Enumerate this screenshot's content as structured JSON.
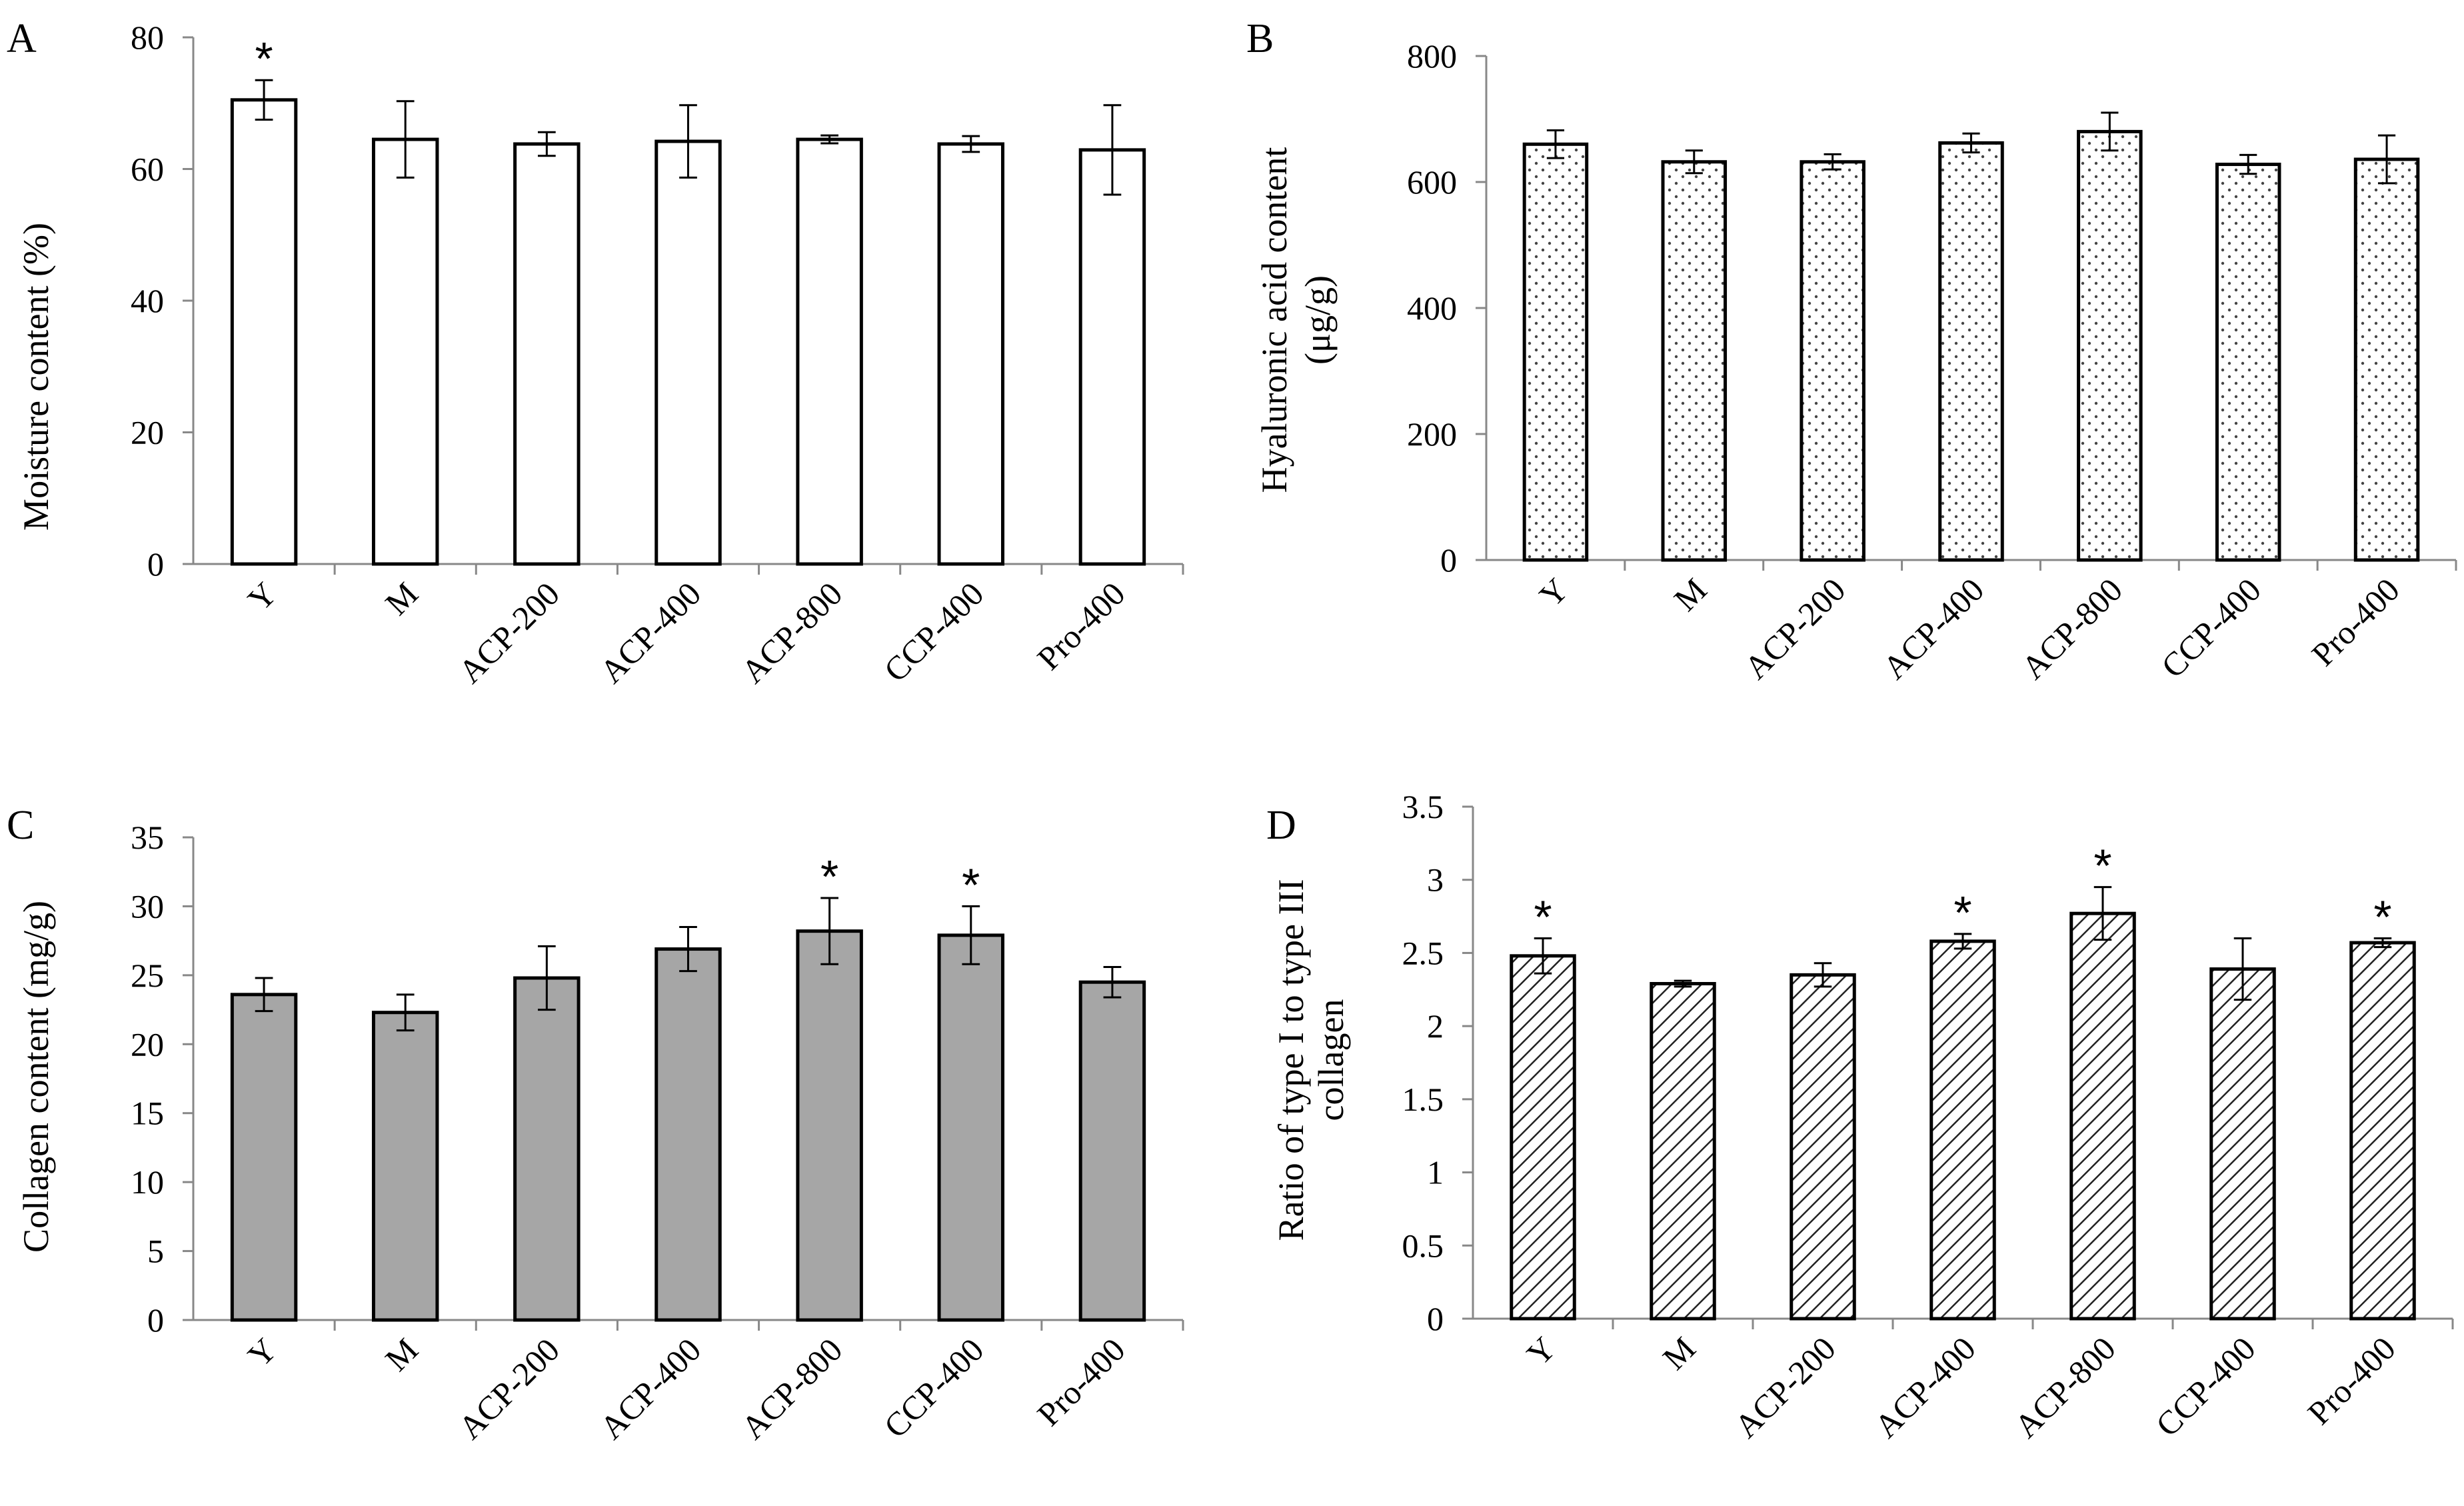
{
  "chart_data": [
    {
      "panel": "A",
      "type": "bar",
      "ylabel": [
        "Moisture content (%)"
      ],
      "categories": [
        "Y",
        "M",
        "ACP-200",
        "ACP-400",
        "ACP-800",
        "CCP-400",
        "Pro-400"
      ],
      "values": [
        70.5,
        64.5,
        63.8,
        64.2,
        64.5,
        63.8,
        62.9
      ],
      "errors": [
        3.0,
        5.8,
        1.8,
        5.5,
        0.6,
        1.2,
        6.8
      ],
      "significant": [
        true,
        false,
        false,
        false,
        false,
        false,
        false
      ],
      "marker": "*",
      "ylim": [
        0,
        80
      ],
      "yticks": [
        0,
        20,
        40,
        60,
        80
      ],
      "tick_labels": [
        "0",
        "20",
        "40",
        "60",
        "80"
      ],
      "fill": "#ffffff",
      "pattern": "none",
      "grid": false
    },
    {
      "panel": "B",
      "type": "bar",
      "ylabel": [
        "Hyaluronic acid content",
        "(μg/g)"
      ],
      "categories": [
        "Y",
        "M",
        "ACP-200",
        "ACP-400",
        "ACP-800",
        "CCP-400",
        "Pro-400"
      ],
      "values": [
        660,
        632,
        632,
        662,
        680,
        628,
        636
      ],
      "errors": [
        22,
        18,
        12,
        15,
        30,
        15,
        38
      ],
      "significant": [
        false,
        false,
        false,
        false,
        false,
        false,
        false
      ],
      "marker": "*",
      "ylim": [
        0,
        800
      ],
      "yticks": [
        0,
        200,
        400,
        600,
        800
      ],
      "tick_labels": [
        "0",
        "200",
        "400",
        "600",
        "800"
      ],
      "fill": "#ffffff",
      "pattern": "dots",
      "grid": false
    },
    {
      "panel": "C",
      "type": "bar",
      "ylabel": [
        "Collagen content (mg/g)"
      ],
      "categories": [
        "Y",
        "M",
        "ACP-200",
        "ACP-400",
        "ACP-800",
        "CCP-400",
        "Pro-400"
      ],
      "values": [
        23.6,
        22.3,
        24.8,
        26.9,
        28.2,
        27.9,
        24.5
      ],
      "errors": [
        1.2,
        1.3,
        2.3,
        1.6,
        2.4,
        2.1,
        1.1
      ],
      "significant": [
        false,
        false,
        false,
        false,
        true,
        true,
        false
      ],
      "marker": "*",
      "ylim": [
        0,
        35
      ],
      "yticks": [
        0,
        5,
        10,
        15,
        20,
        25,
        30,
        35
      ],
      "tick_labels": [
        "0",
        "5",
        "10",
        "15",
        "20",
        "25",
        "30",
        "35"
      ],
      "fill": "#a6a6a6",
      "pattern": "none",
      "grid": false
    },
    {
      "panel": "D",
      "type": "bar",
      "ylabel": [
        "Ratio of type I to type III",
        "collagen"
      ],
      "categories": [
        "Y",
        "M",
        "ACP-200",
        "ACP-400",
        "ACP-800",
        "CCP-400",
        "Pro-400"
      ],
      "values": [
        2.48,
        2.29,
        2.35,
        2.58,
        2.77,
        2.39,
        2.57
      ],
      "errors": [
        0.12,
        0.02,
        0.08,
        0.05,
        0.18,
        0.21,
        0.03
      ],
      "significant": [
        true,
        false,
        false,
        true,
        true,
        false,
        true
      ],
      "marker": "*",
      "ylim": [
        0,
        3.5
      ],
      "yticks": [
        0,
        0.5,
        1,
        1.5,
        2,
        2.5,
        3,
        3.5
      ],
      "tick_labels": [
        "0",
        "0.5",
        "1",
        "1.5",
        "2",
        "2.5",
        "3",
        "3.5"
      ],
      "fill": "#ffffff",
      "pattern": "diagonal-hatch",
      "grid": false
    }
  ]
}
